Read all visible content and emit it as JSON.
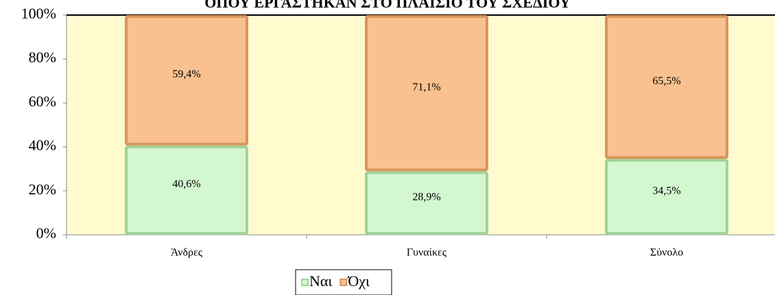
{
  "chart_data": {
    "type": "stacked_bar",
    "title": "ΟΠΟΥ ΕΡΓΑΣΤΗΚΑΝ ΣΤΟ ΠΛΑΙΣΙΟ ΤΟΥ ΣΧΕΔΙΟΥ",
    "categories": [
      "Άνδρες",
      "Γυναίκες",
      "Σύνολο"
    ],
    "series": [
      {
        "name": "Ναι",
        "color": "#d3f7cf",
        "values": [
          40.6,
          28.9,
          34.5
        ],
        "value_labels": [
          "40,6%",
          "28,9%",
          "34,5%"
        ]
      },
      {
        "name": "Όχι",
        "color": "#f9c18f",
        "values": [
          59.4,
          71.1,
          65.5
        ],
        "value_labels": [
          "59,4%",
          "71,1%",
          "65,5%"
        ]
      }
    ],
    "ylim": [
      0,
      100
    ],
    "yticks": [
      {
        "value": 0,
        "label": "0%"
      },
      {
        "value": 20,
        "label": "20%"
      },
      {
        "value": 40,
        "label": "40%"
      },
      {
        "value": 60,
        "label": "60%"
      },
      {
        "value": 80,
        "label": "80%"
      },
      {
        "value": 100,
        "label": "100%"
      }
    ],
    "legend": "bottom"
  }
}
